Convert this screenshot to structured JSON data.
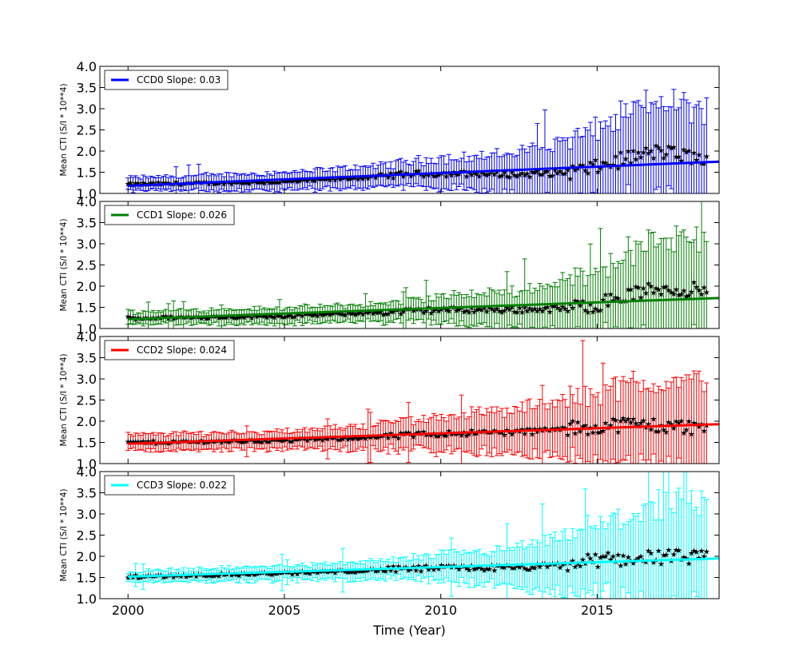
{
  "chart_data": [
    {
      "type": "scatter",
      "series": [
        {
          "name": "CCD0 Slope: 0.03",
          "color": "#0000ff"
        }
      ],
      "xlabel": "",
      "ylabel": "Mean CTI (S/I * 10**4)",
      "xlim": [
        1999.1,
        2018.9
      ],
      "ylim": [
        1.0,
        4.0
      ],
      "yticks": [
        "1.0",
        "1.5",
        "2.0",
        "2.5",
        "3.0",
        "3.5",
        "4.0"
      ],
      "xticks": [],
      "fit": {
        "x": [
          2000.0,
          2018.9
        ],
        "y": [
          1.18,
          1.75
        ]
      },
      "data_start": 2000.0,
      "data_end": 2018.5,
      "trend": [
        [
          2000.0,
          1.22
        ],
        [
          2005.0,
          1.28
        ],
        [
          2008.0,
          1.4
        ],
        [
          2009.0,
          1.47
        ],
        [
          2011.0,
          1.47
        ],
        [
          2012.5,
          1.45
        ],
        [
          2014.0,
          1.5
        ],
        [
          2015.0,
          1.62
        ],
        [
          2016.0,
          1.85
        ],
        [
          2017.0,
          2.0
        ],
        [
          2018.5,
          1.8
        ]
      ],
      "err": [
        [
          2000.0,
          0.15
        ],
        [
          2008.0,
          0.25
        ],
        [
          2012.0,
          0.45
        ],
        [
          2015.0,
          0.9
        ],
        [
          2017.0,
          1.2
        ],
        [
          2018.5,
          1.2
        ]
      ]
    },
    {
      "type": "scatter",
      "series": [
        {
          "name": "CCD1 Slope: 0.026",
          "color": "#008000"
        }
      ],
      "xlabel": "",
      "ylabel": "Mean CTI (S/I * 10**4)",
      "xlim": [
        1999.1,
        2018.9
      ],
      "ylim": [
        1.0,
        4.0
      ],
      "yticks": [
        "1.0",
        "1.5",
        "2.0",
        "2.5",
        "3.0",
        "3.5",
        "4.0"
      ],
      "xticks": [],
      "fit": {
        "x": [
          2000.0,
          2018.9
        ],
        "y": [
          1.22,
          1.72
        ]
      },
      "data_start": 2000.0,
      "data_end": 2018.5,
      "trend": [
        [
          2000.0,
          1.25
        ],
        [
          2005.0,
          1.3
        ],
        [
          2008.0,
          1.38
        ],
        [
          2010.0,
          1.45
        ],
        [
          2012.5,
          1.45
        ],
        [
          2014.0,
          1.48
        ],
        [
          2015.0,
          1.58
        ],
        [
          2016.0,
          1.8
        ],
        [
          2017.0,
          1.95
        ],
        [
          2018.5,
          1.9
        ]
      ],
      "err": [
        [
          2000.0,
          0.15
        ],
        [
          2008.0,
          0.2
        ],
        [
          2012.0,
          0.4
        ],
        [
          2015.0,
          0.8
        ],
        [
          2017.0,
          1.2
        ],
        [
          2018.5,
          1.2
        ]
      ]
    },
    {
      "type": "scatter",
      "series": [
        {
          "name": "CCD2 Slope: 0.024",
          "color": "#ff0000"
        }
      ],
      "xlabel": "",
      "ylabel": "Mean CTI (S/I * 10**4)",
      "xlim": [
        1999.1,
        2018.9
      ],
      "ylim": [
        1.0,
        4.0
      ],
      "yticks": [
        "1.0",
        "1.5",
        "2.0",
        "2.5",
        "3.0",
        "3.5",
        "4.0"
      ],
      "xticks": [],
      "fit": {
        "x": [
          2000.0,
          2018.9
        ],
        "y": [
          1.47,
          1.93
        ]
      },
      "data_start": 2000.0,
      "data_end": 2018.5,
      "trend": [
        [
          2000.0,
          1.5
        ],
        [
          2005.0,
          1.55
        ],
        [
          2008.0,
          1.63
        ],
        [
          2010.0,
          1.72
        ],
        [
          2012.5,
          1.75
        ],
        [
          2014.0,
          1.82
        ],
        [
          2015.0,
          1.88
        ],
        [
          2016.0,
          1.95
        ],
        [
          2017.0,
          1.9
        ],
        [
          2018.5,
          1.85
        ]
      ],
      "err": [
        [
          2000.0,
          0.18
        ],
        [
          2006.0,
          0.22
        ],
        [
          2008.0,
          0.3
        ],
        [
          2012.0,
          0.5
        ],
        [
          2015.0,
          0.8
        ],
        [
          2017.0,
          1.05
        ],
        [
          2018.5,
          1.05
        ]
      ]
    },
    {
      "type": "scatter",
      "series": [
        {
          "name": "CCD3 Slope: 0.022",
          "color": "#00ffff"
        }
      ],
      "xlabel": "Time (Year)",
      "ylabel": "Mean CTI (S/I * 10**4)",
      "xlim": [
        1999.1,
        2018.9
      ],
      "ylim": [
        1.0,
        4.0
      ],
      "yticks": [
        "1.0",
        "1.5",
        "2.0",
        "2.5",
        "3.0",
        "3.5",
        "4.0"
      ],
      "xticks": [
        "2000",
        "2005",
        "2010",
        "2015"
      ],
      "fit": {
        "x": [
          2000.0,
          2018.9
        ],
        "y": [
          1.52,
          1.95
        ]
      },
      "data_start": 2000.0,
      "data_end": 2018.5,
      "trend": [
        [
          2000.0,
          1.52
        ],
        [
          2005.0,
          1.6
        ],
        [
          2008.0,
          1.68
        ],
        [
          2010.0,
          1.73
        ],
        [
          2012.5,
          1.73
        ],
        [
          2014.0,
          1.8
        ],
        [
          2015.0,
          1.92
        ],
        [
          2016.0,
          1.95
        ],
        [
          2017.0,
          2.0
        ],
        [
          2018.5,
          1.95
        ]
      ],
      "err": [
        [
          2000.0,
          0.12
        ],
        [
          2008.0,
          0.2
        ],
        [
          2012.0,
          0.4
        ],
        [
          2015.0,
          0.8
        ],
        [
          2017.0,
          1.2
        ],
        [
          2018.5,
          1.2
        ]
      ]
    }
  ]
}
